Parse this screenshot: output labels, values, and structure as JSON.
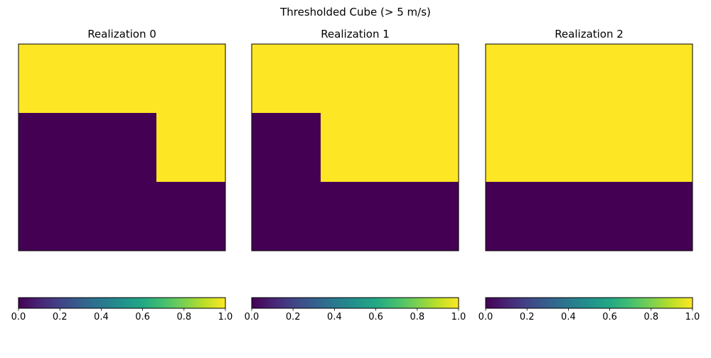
{
  "chart_data": {
    "type": "heatmap",
    "title": "Thresholded Cube (> 5 m/s)",
    "colormap": "viridis",
    "colors": {
      "low": "#440154",
      "high": "#fde725"
    },
    "panels": [
      {
        "title": "Realization 0",
        "grid": [
          [
            1,
            1,
            1
          ],
          [
            0,
            0,
            1
          ],
          [
            0,
            0,
            0
          ]
        ]
      },
      {
        "title": "Realization 1",
        "grid": [
          [
            1,
            1,
            1
          ],
          [
            0,
            1,
            1
          ],
          [
            0,
            0,
            0
          ]
        ]
      },
      {
        "title": "Realization 2",
        "grid": [
          [
            1,
            1,
            1
          ],
          [
            1,
            1,
            1
          ],
          [
            0,
            0,
            0
          ]
        ]
      }
    ],
    "colorbar": {
      "orientation": "horizontal",
      "range": [
        0,
        1
      ],
      "ticks": [
        "0.0",
        "0.2",
        "0.4",
        "0.6",
        "0.8",
        "1.0"
      ]
    },
    "axes_ticks": false
  }
}
